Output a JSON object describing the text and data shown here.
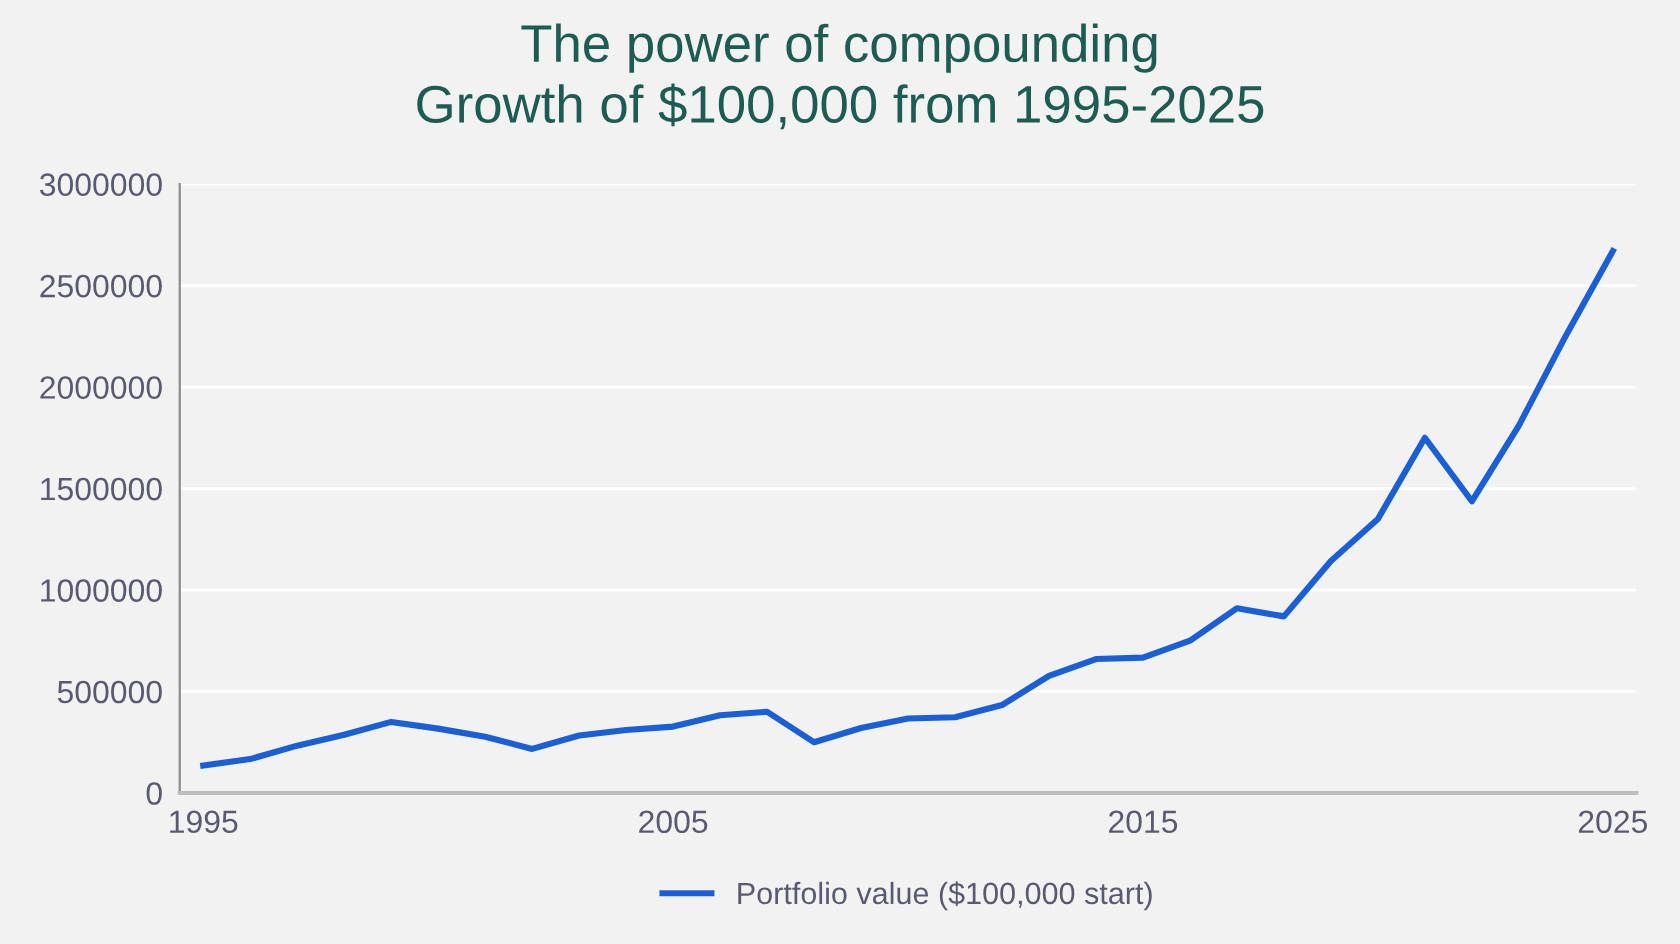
{
  "chart_data": {
    "type": "line",
    "title": "The power of compounding\nGrowth of $100,000 from 1995-2025",
    "x": [
      1995,
      1996,
      1997,
      1998,
      1999,
      2000,
      2001,
      2002,
      2003,
      2004,
      2005,
      2006,
      2007,
      2008,
      2009,
      2010,
      2011,
      2012,
      2013,
      2014,
      2015,
      2016,
      2017,
      2018,
      2019,
      2020,
      2021,
      2022,
      2023,
      2024,
      2025
    ],
    "series": [
      {
        "name": "Portfolio value ($100,000 start)",
        "color": "#1a5fd6",
        "values": [
          135000,
          167000,
          233000,
          287000,
          350000,
          317000,
          277000,
          217000,
          283000,
          310000,
          327000,
          383000,
          400000,
          250000,
          320000,
          367000,
          373000,
          433000,
          577000,
          660000,
          667000,
          750000,
          910000,
          870000,
          1143000,
          1350000,
          1750000,
          1437000,
          1810000,
          2253000,
          2670000
        ]
      }
    ],
    "xlim": [
      1994.5,
      2025.5
    ],
    "xticks": [
      1995,
      2005,
      2015,
      2025
    ],
    "ylim": [
      0,
      3000000
    ],
    "yticks": [
      0,
      500000,
      1000000,
      1500000,
      2000000,
      2500000,
      3000000
    ],
    "grid": "y",
    "legend": "bottom",
    "marker": "none",
    "line_style": "solid"
  }
}
